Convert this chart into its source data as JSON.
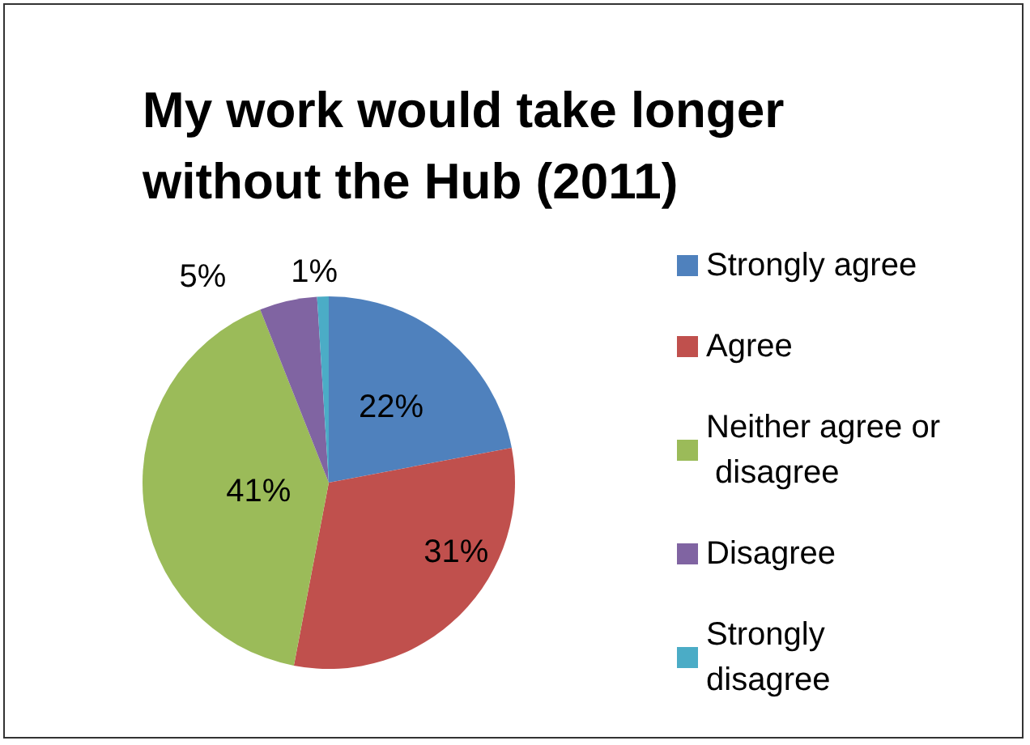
{
  "chart_data": {
    "type": "pie",
    "title": "My work would take longer without the Hub (2011)",
    "categories": [
      "Strongly agree",
      "Agree",
      "Neither agree or disagree",
      "Disagree",
      "Strongly disagree"
    ],
    "values": [
      22,
      31,
      41,
      5,
      1
    ],
    "value_labels": [
      "22%",
      "31%",
      "41%",
      "5%",
      "1%"
    ],
    "colors": [
      "#4f81bd",
      "#c0504d",
      "#9bbb59",
      "#8064a2",
      "#4bacc6"
    ],
    "legend": "right"
  }
}
